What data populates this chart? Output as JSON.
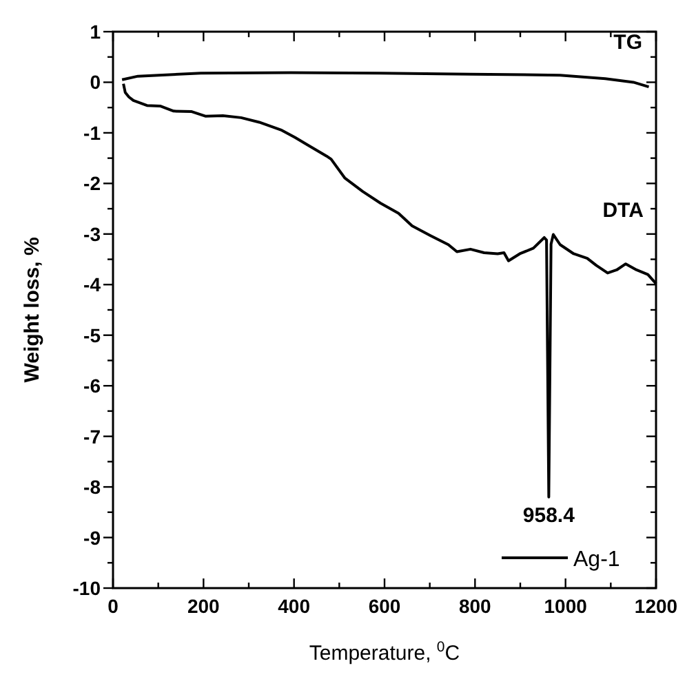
{
  "chart_data": {
    "type": "line",
    "xlabel": "Temperature, $^{0}$C",
    "ylabel": "Weight loss, %",
    "legend": "bottom right",
    "grid": false,
    "line_style": "solid",
    "xlim": [
      0,
      1200
    ],
    "ylim": [
      -10,
      1
    ],
    "xticks": [
      0,
      {
        "value": 100,
        "label": null
      },
      200,
      {
        "value": 300,
        "label": null
      },
      400,
      {
        "value": 500,
        "label": null
      },
      600,
      {
        "value": 700,
        "label": null
      },
      800,
      {
        "value": 900,
        "label": null
      },
      1000,
      {
        "value": 1100,
        "label": null
      },
      1200
    ],
    "yticks": [
      -10,
      {
        "value": -9.5,
        "label": null
      },
      -9,
      {
        "value": -8.5,
        "label": null
      },
      -8,
      {
        "value": -7.5,
        "label": null
      },
      -7,
      {
        "value": -6.5,
        "label": null
      },
      -6,
      {
        "value": -5.5,
        "label": null
      },
      -5,
      {
        "value": -4.5,
        "label": null
      },
      -4,
      {
        "value": -3.5,
        "label": null
      },
      -3,
      {
        "value": -2.5,
        "label": null
      },
      -2,
      {
        "value": -1.5,
        "label": null
      },
      -1,
      {
        "value": -0.5,
        "label": null
      },
      0,
      {
        "value": 0.5,
        "label": null
      },
      1
    ],
    "series": [
      {
        "color": "#000000",
        "x": [
          20,
          55,
          194,
          393,
          591,
          790,
          988,
          1088,
          1150,
          1184
        ],
        "values": [
          0.05,
          0.12,
          0.18,
          0.19,
          0.18,
          0.16,
          0.14,
          0.07,
          0,
          -0.09
        ]
      },
      {
        "name": "Ag-1",
        "color": "#000000",
        "x": [
          23,
          27,
          35,
          45,
          75,
          104,
          134,
          174,
          204,
          243,
          283,
          323,
          373,
          402,
          432,
          472,
          482,
          512,
          552,
          591,
          631,
          661,
          701,
          741,
          760,
          790,
          820,
          850,
          864,
          874,
          899,
          929,
          953,
          958,
          963,
          968,
          973,
          988,
          1018,
          1048,
          1068,
          1093,
          1113,
          1133,
          1157,
          1182,
          1200
        ],
        "values": [
          -0.03,
          -0.2,
          -0.29,
          -0.36,
          -0.46,
          -0.47,
          -0.57,
          -0.58,
          -0.67,
          -0.66,
          -0.7,
          -0.79,
          -0.95,
          -1.09,
          -1.25,
          -1.46,
          -1.52,
          -1.89,
          -2.16,
          -2.39,
          -2.59,
          -2.84,
          -3.03,
          -3.21,
          -3.35,
          -3.3,
          -3.37,
          -3.39,
          -3.37,
          -3.53,
          -3.39,
          -3.28,
          -3.07,
          -3.12,
          -8.2,
          -3.2,
          -3.01,
          -3.21,
          -3.39,
          -3.48,
          -3.62,
          -3.77,
          -3.71,
          -3.59,
          -3.71,
          -3.8,
          -3.98
        ]
      }
    ],
    "annotations": [
      {
        "text": "TG",
        "x": 1150,
        "y": 0
      },
      {
        "text": "DTA",
        "x": 1182,
        "y": -3.8
      },
      {
        "text": "958.4",
        "x": 963,
        "y": -8.2
      }
    ]
  }
}
